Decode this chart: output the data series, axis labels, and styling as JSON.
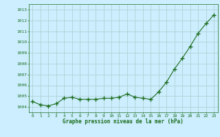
{
  "x": [
    0,
    1,
    2,
    3,
    4,
    5,
    6,
    7,
    8,
    9,
    10,
    11,
    12,
    13,
    14,
    15,
    16,
    17,
    18,
    19,
    20,
    21,
    22,
    23
  ],
  "y": [
    1004.5,
    1004.2,
    1004.1,
    1004.3,
    1004.8,
    1004.9,
    1004.7,
    1004.7,
    1004.7,
    1004.8,
    1004.8,
    1004.9,
    1005.2,
    1004.9,
    1004.8,
    1004.7,
    1005.4,
    1006.3,
    1007.5,
    1008.5,
    1009.6,
    1010.8,
    1011.7,
    1012.5
  ],
  "line_color": "#1a6b1a",
  "marker_color": "#1a6b1a",
  "bg_color": "#cceeff",
  "grid_color": "#aacccc",
  "xlabel": "Graphe pression niveau de la mer (hPa)",
  "xlabel_color": "#1a6b1a",
  "tick_color": "#1a6b1a",
  "ylim_min": 1003.5,
  "ylim_max": 1013.5,
  "xlim_min": -0.5,
  "xlim_max": 23.5,
  "yticks": [
    1004,
    1005,
    1006,
    1007,
    1008,
    1009,
    1010,
    1011,
    1012,
    1013
  ],
  "xticks": [
    0,
    1,
    2,
    3,
    4,
    5,
    6,
    7,
    8,
    9,
    10,
    11,
    12,
    13,
    14,
    15,
    16,
    17,
    18,
    19,
    20,
    21,
    22,
    23
  ]
}
